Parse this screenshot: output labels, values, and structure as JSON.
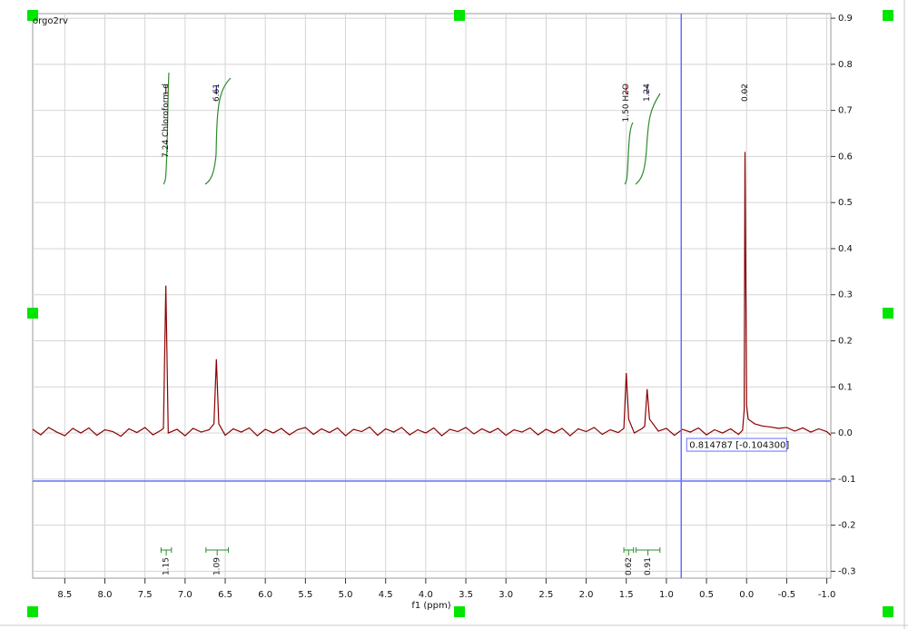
{
  "chart_data": {
    "type": "line",
    "title": "orgo2rv",
    "x_label": "f1 (ppm)",
    "xlim": [
      8.9,
      -1.05
    ],
    "ylim": [
      -0.315,
      0.91
    ],
    "xticks": [
      {
        "value": 8.5,
        "label": "8.5"
      },
      {
        "value": 8,
        "label": "8.0"
      },
      7.5,
      {
        "value": 7,
        "label": "7.0"
      },
      6.5,
      {
        "value": 6,
        "label": "6.0"
      },
      5.5,
      {
        "value": 5,
        "label": "5.0"
      },
      4.5,
      {
        "value": 4,
        "label": "4.0"
      },
      3.5,
      {
        "value": 3,
        "label": "3.0"
      },
      2.5,
      {
        "value": 2,
        "label": "2.0"
      },
      1.5,
      {
        "value": 1,
        "label": "1.0"
      },
      0.5,
      {
        "value": 0,
        "label": "0.0"
      },
      -0.5,
      {
        "value": -1,
        "label": "-1.0"
      }
    ],
    "yticks": [
      0.9,
      0.8,
      0.7,
      0.6,
      0.5,
      0.4,
      0.3,
      0.2,
      0.1,
      {
        "value": 0,
        "label": "0.0"
      },
      -0.1,
      -0.2,
      -0.3
    ],
    "grid": true,
    "x": [
      8.9,
      8.8,
      8.7,
      8.6,
      8.5,
      8.4,
      8.3,
      8.2,
      8.1,
      8.0,
      7.9,
      7.8,
      7.7,
      7.6,
      7.5,
      7.4,
      7.3,
      7.27,
      7.24,
      7.21,
      7.1,
      7.0,
      6.9,
      6.8,
      6.7,
      6.64,
      6.61,
      6.58,
      6.5,
      6.4,
      6.3,
      6.2,
      6.1,
      6.0,
      5.9,
      5.8,
      5.7,
      5.6,
      5.5,
      5.4,
      5.3,
      5.2,
      5.1,
      5.0,
      4.9,
      4.8,
      4.7,
      4.6,
      4.5,
      4.4,
      4.3,
      4.2,
      4.1,
      4.0,
      3.9,
      3.8,
      3.7,
      3.6,
      3.5,
      3.4,
      3.3,
      3.2,
      3.1,
      3.0,
      2.9,
      2.8,
      2.7,
      2.6,
      2.5,
      2.4,
      2.3,
      2.2,
      2.1,
      2.0,
      1.9,
      1.8,
      1.7,
      1.6,
      1.53,
      1.5,
      1.47,
      1.4,
      1.3,
      1.27,
      1.24,
      1.21,
      1.1,
      1.0,
      0.9,
      0.8,
      0.7,
      0.6,
      0.5,
      0.4,
      0.3,
      0.2,
      0.1,
      0.05,
      0.03,
      0.02,
      0.0,
      -0.02,
      -0.1,
      -0.2,
      -0.3,
      -0.4,
      -0.5,
      -0.6,
      -0.7,
      -0.8,
      -0.9,
      -1.0,
      -1.05
    ],
    "series": [
      {
        "color": "#8b0000",
        "values": [
          0.008,
          -0.004,
          0.012,
          0.002,
          -0.006,
          0.01,
          0.0,
          0.011,
          -0.005,
          0.007,
          0.003,
          -0.007,
          0.009,
          0.001,
          0.012,
          -0.004,
          0.006,
          0.01,
          0.32,
          0.0,
          0.008,
          -0.006,
          0.01,
          0.002,
          0.007,
          0.02,
          0.16,
          0.02,
          -0.005,
          0.009,
          0.002,
          0.011,
          -0.006,
          0.008,
          0.0,
          0.01,
          -0.004,
          0.007,
          0.012,
          -0.003,
          0.009,
          0.001,
          0.011,
          -0.006,
          0.008,
          0.003,
          0.013,
          -0.005,
          0.009,
          0.002,
          0.012,
          -0.004,
          0.007,
          0.0,
          0.011,
          -0.006,
          0.008,
          0.003,
          0.012,
          -0.002,
          0.009,
          0.001,
          0.01,
          -0.005,
          0.007,
          0.002,
          0.011,
          -0.004,
          0.008,
          0.0,
          0.01,
          -0.006,
          0.009,
          0.003,
          0.012,
          -0.003,
          0.007,
          0.001,
          0.01,
          0.13,
          0.03,
          0.0,
          0.01,
          0.015,
          0.095,
          0.03,
          0.004,
          0.01,
          -0.005,
          0.008,
          0.002,
          0.011,
          -0.004,
          0.007,
          0.0,
          0.009,
          -0.003,
          0.006,
          0.05,
          0.61,
          0.06,
          0.03,
          0.02,
          0.015,
          0.013,
          0.01,
          0.012,
          0.004,
          0.011,
          0.002,
          0.009,
          0.003,
          -0.005
        ]
      }
    ],
    "peak_labels": [
      {
        "x": 7.24,
        "label": "7.24 Chloroform-d",
        "color": "#cc0000"
      },
      {
        "x": 6.61,
        "label": "6.61",
        "color": "#000080"
      },
      {
        "x": 1.5,
        "label": "1.50 H2O",
        "color": "#cc0000"
      },
      {
        "x": 1.24,
        "label": "1.24",
        "color": "#000080"
      },
      {
        "x": 0.02,
        "label": "0.02",
        "color": "#999999"
      }
    ],
    "integrals": [
      {
        "from": 7.3,
        "to": 7.17,
        "label": "1.15"
      },
      {
        "from": 6.74,
        "to": 6.46,
        "label": "1.09"
      },
      {
        "from": 1.53,
        "to": 1.41,
        "label": "0.62"
      },
      {
        "from": 1.38,
        "to": 1.08,
        "label": "0.91"
      }
    ],
    "cursor": {
      "x": 0.814787,
      "y": -0.1043,
      "label": "0.814787 [-0.104300]"
    }
  }
}
